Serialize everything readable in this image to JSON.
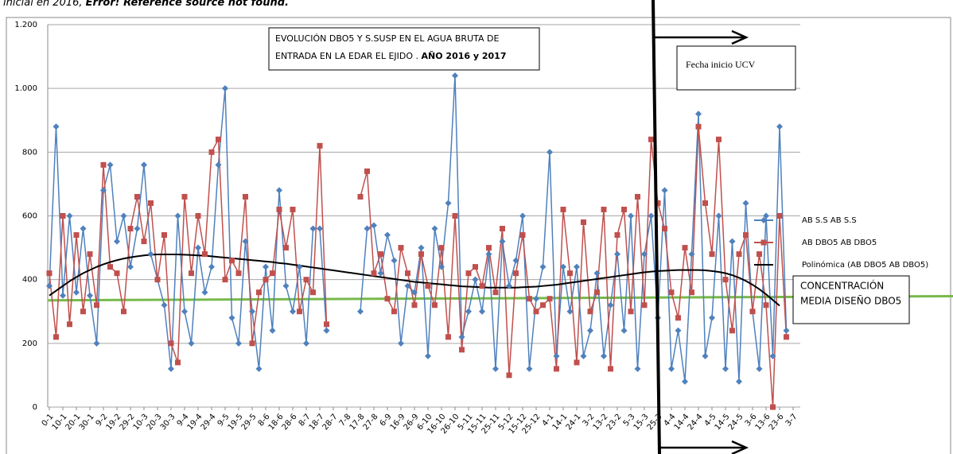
{
  "caption": {
    "text": "inicial en 2016, ",
    "error": "Error! Reference source not found."
  },
  "chart_data": {
    "type": "line",
    "title": {
      "line1": "EVOLUCIÓN DBO5 Y S.SUSP EN EL AGUA BRUTA DE",
      "line2": "ENTRADA EN LA EDAR EL EJIDO . ",
      "line2_bold": "AÑO 2016 y 2017"
    },
    "categories": [
      "0-1",
      null,
      "10-1",
      null,
      "20-1",
      null,
      "30-1",
      null,
      "9-2",
      null,
      "19-2",
      null,
      "29-2",
      null,
      "10-3",
      null,
      "20-3",
      null,
      "30-3",
      null,
      "9-4",
      null,
      "19-4",
      null,
      "29-4",
      null,
      "9-5",
      null,
      "19-5",
      null,
      "29-5",
      null,
      "8-6",
      null,
      "18-6",
      null,
      "28-6",
      null,
      "8-7",
      null,
      "18-7",
      null,
      "28-7",
      null,
      "7-8",
      null,
      "17-8",
      null,
      "27-8",
      null,
      "6-9",
      null,
      "16-9",
      null,
      "26-9",
      null,
      "6-10",
      null,
      "16-10",
      null,
      "26-10",
      null,
      "5-11",
      null,
      "15-11",
      null,
      "25-11",
      null,
      "5-12",
      null,
      "15-12",
      null,
      "25-12",
      null,
      "4-1",
      null,
      "14-1",
      null,
      "24-1",
      null,
      "3-2",
      null,
      "13-2",
      null,
      "23-2",
      null,
      "5-3",
      null,
      "15-3",
      null,
      "25-3",
      null,
      "4-4",
      null,
      "14-4",
      null,
      "24-4",
      null,
      "4-5",
      null,
      "14-5",
      null,
      "24-5",
      null,
      "3-6",
      null,
      "13-6",
      null,
      "23-6",
      null,
      "3-7"
    ],
    "series": [
      {
        "name": "AB S.S AB S.S",
        "color": "#4f81bd",
        "marker": "diamond",
        "values": [
          380,
          880,
          350,
          600,
          360,
          560,
          350,
          200,
          680,
          760,
          520,
          600,
          440,
          560,
          760,
          480,
          400,
          320,
          120,
          600,
          300,
          200,
          500,
          360,
          440,
          760,
          1000,
          280,
          200,
          520,
          300,
          120,
          440,
          240,
          680,
          380,
          300,
          440,
          200,
          560,
          560,
          240,
          null,
          null,
          null,
          null,
          300,
          560,
          570,
          420,
          540,
          460,
          200,
          380,
          360,
          500,
          160,
          560,
          440,
          640,
          1040,
          220,
          300,
          400,
          300,
          480,
          120,
          520,
          380,
          460,
          600,
          120,
          340,
          440,
          800,
          160,
          440,
          300,
          440,
          160,
          240,
          420,
          160,
          320,
          480,
          240,
          600,
          120,
          480,
          600,
          280,
          680,
          120,
          240,
          80,
          480,
          920,
          160,
          280,
          600,
          120,
          520,
          80,
          640,
          300,
          120,
          600,
          160,
          880,
          240,
          null
        ]
      },
      {
        "name": "AB DBO5 AB DBO5",
        "color": "#c0504d",
        "marker": "square",
        "values": [
          420,
          220,
          600,
          260,
          540,
          300,
          480,
          320,
          760,
          440,
          420,
          300,
          560,
          660,
          520,
          640,
          400,
          540,
          200,
          140,
          660,
          420,
          600,
          480,
          800,
          840,
          400,
          460,
          420,
          660,
          200,
          360,
          400,
          420,
          620,
          500,
          620,
          300,
          400,
          360,
          820,
          260,
          null,
          null,
          null,
          null,
          660,
          740,
          420,
          480,
          340,
          300,
          500,
          420,
          320,
          480,
          380,
          320,
          500,
          220,
          600,
          180,
          420,
          440,
          380,
          500,
          360,
          560,
          100,
          420,
          540,
          340,
          300,
          320,
          340,
          120,
          620,
          420,
          140,
          580,
          300,
          360,
          620,
          120,
          540,
          620,
          300,
          660,
          320,
          840,
          640,
          560,
          360,
          280,
          500,
          360,
          880,
          640,
          480,
          840,
          400,
          240,
          480,
          540,
          300,
          480,
          320,
          0,
          600,
          220,
          null
        ]
      },
      {
        "name": "Polinómica (AB DBO5 AB DBO5)",
        "color": "#000000",
        "marker": "none",
        "values": [
          350,
          365,
          380,
          395,
          408,
          420,
          430,
          440,
          448,
          455,
          461,
          466,
          470,
          473,
          476,
          478,
          479,
          479,
          479,
          479,
          478,
          477,
          476,
          475,
          473,
          471,
          469,
          467,
          465,
          463,
          461,
          459,
          457,
          455,
          452,
          450,
          447,
          444,
          441,
          438,
          435,
          432,
          429,
          426,
          423,
          420,
          417,
          414,
          411,
          408,
          405,
          402,
          399,
          396,
          393,
          391,
          389,
          387,
          385,
          383,
          381,
          379,
          378,
          377,
          376,
          375,
          375,
          375,
          375,
          375,
          376,
          377,
          378,
          380,
          382,
          384,
          387,
          390,
          393,
          396,
          399,
          402,
          405,
          408,
          411,
          414,
          417,
          420,
          423,
          425,
          427,
          428,
          429,
          430,
          430,
          430,
          430,
          429,
          427,
          424,
          420,
          414,
          406,
          396,
          384,
          370,
          354,
          336,
          318,
          null,
          null
        ]
      }
    ],
    "design_line": {
      "lines": [
        "CONCENTRACIÓN",
        "MEDIA DISEÑO DBO5"
      ],
      "values": [
        335,
        348
      ],
      "color": "#77b94a"
    },
    "ucv_start": {
      "label": "Fecha inicio UCV"
    },
    "ylim": [
      0,
      1200
    ],
    "yticks": [
      0,
      200,
      400,
      600,
      800,
      {
        "value": 1000,
        "label": "1.000"
      },
      {
        "value": 1200,
        "label": "1.200"
      }
    ],
    "grid": true,
    "legend": "right"
  }
}
